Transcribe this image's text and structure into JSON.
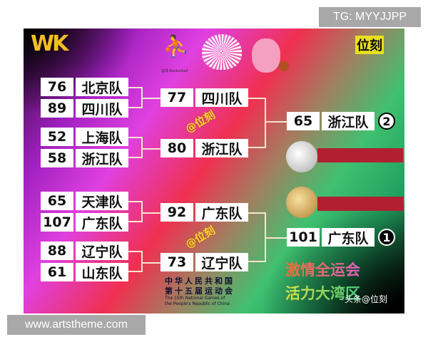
{
  "overlay": {
    "tg": "TG: MYYJJPP",
    "watermark": "www.artstheme.com"
  },
  "poster": {
    "logo_left": "WK",
    "logo_right": "位刻",
    "sport_label": "篮球 Basketball",
    "round1": [
      {
        "score": "76",
        "team": "北京队"
      },
      {
        "score": "89",
        "team": "四川队"
      },
      {
        "score": "52",
        "team": "上海队"
      },
      {
        "score": "58",
        "team": "浙江队"
      },
      {
        "score": "65",
        "team": "天津队"
      },
      {
        "score": "107",
        "team": "广东队"
      },
      {
        "score": "88",
        "team": "辽宁队"
      },
      {
        "score": "61",
        "team": "山东队"
      }
    ],
    "round2": [
      {
        "score": "77",
        "team": "四川队"
      },
      {
        "score": "80",
        "team": "浙江队"
      },
      {
        "score": "92",
        "team": "广东队"
      },
      {
        "score": "73",
        "team": "辽宁队"
      }
    ],
    "final": [
      {
        "score": "65",
        "team": "浙江队",
        "rank": "2"
      },
      {
        "score": "101",
        "team": "广东队",
        "rank": "1"
      }
    ],
    "watermark_tag": "@位刻",
    "event_cn_1": "中华人民共和国",
    "event_cn_2": "第十五届运动会",
    "event_en_1": "The 15th National Games of",
    "event_en_2": "the People's Republic of China",
    "slogan_1": "激情全运会",
    "slogan_2": "活力大湾区",
    "credit": "头条@位刻"
  }
}
